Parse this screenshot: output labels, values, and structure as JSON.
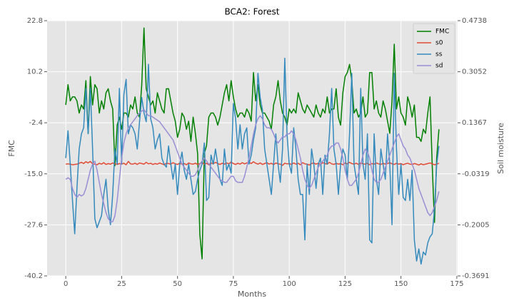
{
  "chart_data": {
    "type": "line",
    "title": "BCA2: Forest",
    "xlabel": "Months",
    "ylabel": "FMC",
    "y2label": "Soil moisture",
    "xlim": [
      -8.35,
      175.35
    ],
    "xticks": [
      0,
      25,
      50,
      75,
      100,
      125,
      150,
      175
    ],
    "ylim": [
      -40.2,
      22.8
    ],
    "yticks": [
      -40.2,
      -27.6,
      {
        "value": -15,
        "label": "-15.0"
      },
      -2.4,
      10.2,
      22.8
    ],
    "y2lim": [
      -0.3691,
      0.4738
    ],
    "y2ticks": [
      -0.3691,
      -0.2005,
      -0.0319,
      0.1367,
      0.3052,
      0.4738
    ],
    "grid": true,
    "legend": "upper right",
    "x": [
      0,
      1,
      2,
      3,
      4,
      5,
      6,
      7,
      8,
      9,
      10,
      11,
      12,
      13,
      14,
      15,
      16,
      17,
      18,
      19,
      20,
      21,
      22,
      23,
      24,
      25,
      26,
      27,
      28,
      29,
      30,
      31,
      32,
      33,
      34,
      35,
      36,
      37,
      38,
      39,
      40,
      41,
      42,
      43,
      44,
      45,
      46,
      47,
      48,
      49,
      50,
      51,
      52,
      53,
      54,
      55,
      56,
      57,
      58,
      59,
      60,
      61,
      62,
      63,
      64,
      65,
      66,
      67,
      68,
      69,
      70,
      71,
      72,
      73,
      74,
      75,
      76,
      77,
      78,
      79,
      80,
      81,
      82,
      83,
      84,
      85,
      86,
      87,
      88,
      89,
      90,
      91,
      92,
      93,
      94,
      95,
      96,
      97,
      98,
      99,
      100,
      101,
      102,
      103,
      104,
      105,
      106,
      107,
      108,
      109,
      110,
      111,
      112,
      113,
      114,
      115,
      116,
      117,
      118,
      119,
      120,
      121,
      122,
      123,
      124,
      125,
      126,
      127,
      128,
      129,
      130,
      131,
      132,
      133,
      134,
      135,
      136,
      137,
      138,
      139,
      140,
      141,
      142,
      143,
      144,
      145,
      146,
      147,
      148,
      149,
      150,
      151,
      152,
      153,
      154,
      155,
      156,
      157,
      158,
      159,
      160,
      161,
      162,
      163,
      164,
      165,
      166,
      167
    ],
    "series": [
      {
        "name": "FMC",
        "color": "#008000",
        "axis": "y",
        "values": [
          2,
          7,
          3,
          4,
          4,
          3,
          0,
          2,
          1,
          8,
          -5,
          9,
          2,
          7,
          6,
          0,
          3,
          1,
          5,
          6,
          3,
          1,
          -13,
          -3,
          -1,
          -4,
          0,
          0,
          -1,
          2,
          1,
          4,
          0,
          -1,
          7,
          21,
          6,
          4,
          2,
          3,
          0,
          5,
          3,
          1,
          0,
          6,
          6,
          3,
          0,
          -2,
          -6,
          -4,
          0,
          -1,
          -4,
          -2,
          -7,
          -1,
          -5,
          -10,
          -30,
          -36,
          -10,
          -8,
          -1,
          0,
          0,
          -1,
          -3,
          -1,
          2,
          5,
          7,
          3,
          8,
          4,
          1,
          -1,
          0,
          0,
          -1,
          1,
          0,
          -2,
          10,
          3,
          7,
          2,
          0,
          0,
          -1,
          -2,
          -4,
          2,
          4,
          8,
          3,
          0,
          -1,
          -3,
          1,
          0,
          1,
          0,
          5,
          3,
          1,
          0,
          2,
          1,
          0,
          -1,
          2,
          0,
          -1,
          1,
          0,
          4,
          0,
          1,
          1,
          6,
          -1,
          -3,
          5,
          9,
          10,
          12,
          8,
          0,
          1,
          -1,
          0,
          4,
          -1,
          0,
          10,
          10,
          1,
          3,
          0,
          -1,
          3,
          1,
          -2,
          -5,
          3,
          17,
          1,
          4,
          0,
          -1,
          -3,
          4,
          2,
          -1,
          2,
          -6,
          -6,
          -7,
          -4,
          -5,
          0,
          4,
          -13,
          -27,
          -11,
          -4
        ]
      },
      {
        "name": "s0",
        "color": "#e24a33",
        "axis": "y2",
        "values": [
          0.0,
          0.001,
          0.0,
          -0.002,
          -0.001,
          0.0,
          0.003,
          0.006,
          0.002,
          0.008,
          0.004,
          0.009,
          0.001,
          0.0,
          -0.002,
          0.003,
          0.0,
          0.005,
          -0.001,
          0.002,
          0.0,
          0.004,
          0.001,
          -0.001,
          0.002,
          0.0,
          0.003,
          -0.002,
          0.009,
          0.001,
          0.0,
          0.003,
          -0.001,
          0.004,
          0.002,
          0.0,
          0.006,
          0.001,
          0.003,
          -0.001,
          0.002,
          0.0,
          0.004,
          0.001,
          -0.002,
          0.003,
          0.002,
          0.0,
          0.005,
          0.001,
          -0.001,
          0.003,
          0.0,
          0.002,
          -0.002,
          0.004,
          0.001,
          0.0,
          0.003,
          -0.001,
          0.002,
          0.005,
          0.0,
          0.003,
          -0.002,
          0.004,
          0.001,
          0.006,
          0.002,
          -0.001,
          0.003,
          0.0,
          0.004,
          0.001,
          0.007,
          0.002,
          -0.001,
          0.003,
          0.0,
          0.005,
          0.001,
          0.004,
          0.006,
          0.002,
          0.008,
          0.003,
          0.0,
          0.004,
          -0.001,
          0.002,
          0.005,
          0.0,
          0.003,
          -0.002,
          0.004,
          0.001,
          0.0,
          -0.004,
          0.003,
          0.001,
          0.002,
          -0.001,
          0.004,
          0.0,
          0.003,
          -0.002,
          0.005,
          0.001,
          0.0,
          -0.003,
          0.002,
          0.004,
          0.0,
          0.003,
          -0.001,
          0.005,
          0.002,
          0.0,
          0.006,
          0.001,
          -0.001,
          0.003,
          0.0,
          0.002,
          -0.002,
          0.004,
          0.001,
          0.006,
          0.002,
          0.0,
          0.003,
          -0.001,
          0.004,
          0.001,
          0.0,
          0.003,
          -0.002,
          0.002,
          0.0,
          0.004,
          0.001,
          -0.001,
          0.003,
          0.0,
          0.002,
          0.005,
          0.001,
          -0.001,
          0.003,
          0.0,
          0.002,
          -0.002,
          0.001,
          0.003,
          0.0,
          -0.001,
          0.002,
          0.0,
          -0.003,
          0.001,
          -0.002,
          0.0,
          0.002,
          0.004,
          0.001,
          -0.002,
          0.0,
          0.003
        ]
      },
      {
        "name": "ss",
        "color": "#348abd",
        "axis": "y2",
        "values": [
          0.02,
          0.11,
          0.0,
          -0.12,
          -0.23,
          -0.08,
          0.05,
          0.1,
          0.12,
          0.25,
          0.1,
          0.25,
          0.05,
          -0.18,
          -0.21,
          -0.19,
          -0.17,
          -0.1,
          -0.05,
          -0.15,
          -0.2,
          -0.1,
          0.05,
          0.0,
          0.25,
          0.0,
          0.23,
          0.28,
          0.1,
          0.13,
          0.12,
          0.1,
          0.05,
          0.14,
          0.22,
          0.17,
          0.14,
          0.33,
          0.15,
          0.12,
          0.05,
          0.08,
          0.1,
          0.02,
          0.0,
          -0.01,
          0.06,
          0.0,
          -0.05,
          0.0,
          -0.1,
          0.0,
          0.04,
          -0.02,
          -0.05,
          0.0,
          -0.05,
          -0.1,
          -0.09,
          -0.05,
          -0.02,
          0.0,
          0.07,
          -0.12,
          -0.11,
          0.03,
          0.0,
          0.05,
          0.0,
          -0.05,
          -0.07,
          0.05,
          -0.02,
          0.0,
          -0.03,
          0.2,
          0.15,
          0.05,
          0.13,
          0.05,
          0.1,
          0.12,
          0.0,
          0.03,
          0.08,
          0.12,
          0.3,
          0.22,
          0.18,
          0.05,
          0.0,
          -0.05,
          -0.1,
          0.0,
          0.1,
          0.0,
          -0.06,
          0.05,
          0.35,
          0.1,
          0.0,
          -0.03,
          0.12,
          0.05,
          -0.05,
          -0.1,
          -0.1,
          -0.25,
          0.0,
          -0.1,
          0.05,
          0.0,
          -0.08,
          0.0,
          0.02,
          -0.1,
          0.03,
          0.0,
          0.1,
          0.25,
          0.05,
          0.0,
          -0.1,
          0.0,
          0.05,
          0.03,
          -0.05,
          0.1,
          0.3,
          0.0,
          -0.05,
          -0.1,
          0.25,
          0.0,
          -0.05,
          0.1,
          -0.25,
          -0.26,
          0.1,
          -0.05,
          -0.1,
          0.05,
          0.0,
          -0.05,
          0.1,
          0.0,
          -0.2,
          0.3,
          0.05,
          -0.1,
          0.0,
          -0.11,
          -0.12,
          -0.05,
          -0.12,
          -0.02,
          -0.25,
          -0.32,
          -0.28,
          -0.33,
          -0.29,
          -0.3,
          -0.26,
          -0.24,
          -0.23,
          -0.15,
          0.0,
          0.06
        ]
      },
      {
        "name": "sd",
        "color": "#988ed5",
        "axis": "y2",
        "values": [
          -0.05,
          -0.045,
          -0.05,
          -0.08,
          -0.1,
          -0.11,
          -0.1,
          -0.105,
          -0.1,
          -0.08,
          -0.05,
          -0.02,
          0.0,
          0.01,
          -0.02,
          -0.06,
          -0.1,
          -0.13,
          -0.16,
          -0.18,
          -0.19,
          -0.19,
          -0.17,
          -0.12,
          -0.05,
          0.02,
          0.07,
          0.1,
          0.12,
          0.13,
          0.14,
          0.15,
          0.16,
          0.17,
          0.175,
          0.18,
          0.17,
          0.16,
          0.16,
          0.155,
          0.15,
          0.145,
          0.14,
          0.13,
          0.12,
          0.11,
          0.1,
          0.09,
          0.08,
          0.06,
          0.04,
          0.02,
          0.0,
          -0.01,
          -0.02,
          -0.03,
          -0.04,
          -0.04,
          -0.035,
          -0.02,
          0.0,
          0.01,
          0.02,
          0.01,
          0.0,
          -0.01,
          -0.02,
          -0.03,
          -0.04,
          -0.05,
          -0.055,
          -0.06,
          -0.06,
          -0.05,
          -0.04,
          -0.04,
          -0.055,
          -0.06,
          -0.06,
          -0.06,
          -0.04,
          -0.01,
          0.02,
          0.06,
          0.1,
          0.13,
          0.15,
          0.16,
          0.15,
          0.13,
          0.12,
          0.12,
          0.115,
          0.1,
          0.08,
          0.07,
          0.08,
          0.09,
          0.09,
          0.1,
          0.1,
          0.11,
          0.1,
          0.08,
          0.05,
          0.02,
          -0.02,
          -0.05,
          -0.07,
          -0.08,
          -0.07,
          -0.05,
          -0.03,
          -0.01,
          0.0,
          0.01,
          0.02,
          0.03,
          0.05,
          0.06,
          0.06,
          0.07,
          0.07,
          0.05,
          0.02,
          -0.02,
          -0.05,
          -0.07,
          -0.07,
          -0.06,
          -0.05,
          -0.03,
          0.0,
          0.03,
          0.05,
          0.04,
          0.02,
          -0.02,
          -0.05,
          -0.06,
          -0.06,
          -0.05,
          -0.03,
          -0.01,
          0.01,
          0.03,
          0.05,
          0.07,
          0.09,
          0.1,
          0.08,
          0.06,
          0.05,
          0.03,
          0.02,
          0.0,
          -0.02,
          -0.05,
          -0.08,
          -0.1,
          -0.12,
          -0.14,
          -0.16,
          -0.17,
          -0.16,
          -0.14,
          -0.12,
          -0.09
        ]
      }
    ]
  }
}
